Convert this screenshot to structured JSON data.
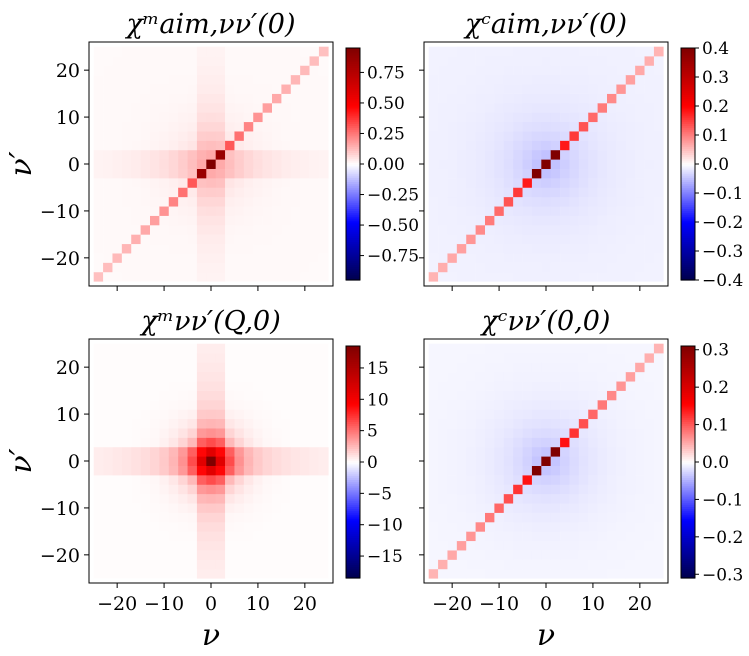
{
  "chart_data": [
    {
      "type": "heatmap",
      "title": "χᵐaim,νν′(0)",
      "xlabel": "",
      "ylabel": "ν′",
      "xlim": [
        -26,
        26
      ],
      "ylim": [
        -26,
        26
      ],
      "xticks": [
        -20,
        -10,
        0,
        10,
        20
      ],
      "yticks": [
        -20,
        -10,
        0,
        10,
        20
      ],
      "xtick_labels": [
        "",
        "",
        "",
        "",
        ""
      ],
      "ytick_labels": [
        "−20",
        "−10",
        "0",
        "10",
        "20"
      ],
      "colorbar": {
        "vmin": -0.95,
        "vmax": 0.95,
        "ticks": [
          -0.75,
          -0.5,
          -0.25,
          0.0,
          0.25,
          0.5,
          0.75
        ],
        "tick_labels": [
          "−0.75",
          "−0.50",
          "−0.25",
          "0.00",
          "0.25",
          "0.50",
          "0.75"
        ]
      },
      "pattern": "diagonal + cross",
      "values": {
        "peak": 0.95,
        "diag_center": 0.45,
        "diag_far": 0.1,
        "cross_center": 0.08,
        "background": 0.01
      }
    },
    {
      "type": "heatmap",
      "title": "χᶜaim,νν′(0)",
      "xlabel": "",
      "ylabel": "",
      "xlim": [
        -26,
        26
      ],
      "ylim": [
        -26,
        26
      ],
      "xticks": [
        -20,
        -10,
        0,
        10,
        20
      ],
      "yticks": [
        -20,
        -10,
        0,
        10,
        20
      ],
      "xtick_labels": [
        "",
        "",
        "",
        "",
        ""
      ],
      "ytick_labels": [
        "",
        "",
        "",
        "",
        ""
      ],
      "colorbar": {
        "vmin": -0.4,
        "vmax": 0.4,
        "ticks": [
          -0.4,
          -0.3,
          -0.2,
          -0.1,
          0.0,
          0.1,
          0.2,
          0.3,
          0.4
        ],
        "tick_labels": [
          "−0.4",
          "−0.3",
          "−0.2",
          "−0.1",
          "0.0",
          "0.1",
          "0.2",
          "0.3",
          "0.4"
        ]
      },
      "pattern": "diagonal + blue halo",
      "values": {
        "peak": 0.4,
        "diag_center": 0.25,
        "diag_far": 0.04,
        "halo": -0.05,
        "background": -0.01
      }
    },
    {
      "type": "heatmap",
      "title": "χᵐνν′(Q,0)",
      "xlabel": "ν",
      "ylabel": "ν′",
      "xlim": [
        -26,
        26
      ],
      "ylim": [
        -26,
        26
      ],
      "xticks": [
        -20,
        -10,
        0,
        10,
        20
      ],
      "yticks": [
        -20,
        -10,
        0,
        10,
        20
      ],
      "xtick_labels": [
        "−20",
        "−10",
        "0",
        "10",
        "20"
      ],
      "ytick_labels": [
        "−20",
        "−10",
        "0",
        "10",
        "20"
      ],
      "colorbar": {
        "vmin": -18.5,
        "vmax": 18.5,
        "ticks": [
          -15,
          -10,
          -5,
          0,
          5,
          10,
          15
        ],
        "tick_labels": [
          "−15",
          "−10",
          "−5",
          "0",
          "5",
          "10",
          "15"
        ]
      },
      "pattern": "cross + central blob",
      "values": {
        "peak": 18.5,
        "cross_center": 2.5,
        "background": 0.1
      }
    },
    {
      "type": "heatmap",
      "title": "χᶜνν′(0,0)",
      "xlabel": "ν",
      "ylabel": "",
      "xlim": [
        -26,
        26
      ],
      "ylim": [
        -26,
        26
      ],
      "xticks": [
        -20,
        -10,
        0,
        10,
        20
      ],
      "yticks": [
        -20,
        -10,
        0,
        10,
        20
      ],
      "xtick_labels": [
        "−20",
        "−10",
        "0",
        "10",
        "20"
      ],
      "ytick_labels": [
        "",
        "",
        "",
        "",
        ""
      ],
      "colorbar": {
        "vmin": -0.31,
        "vmax": 0.31,
        "ticks": [
          -0.3,
          -0.2,
          -0.1,
          0.0,
          0.1,
          0.2,
          0.3
        ],
        "tick_labels": [
          "−0.3",
          "−0.2",
          "−0.1",
          "0.0",
          "0.1",
          "0.2",
          "0.3"
        ]
      },
      "pattern": "diagonal + blue halo",
      "values": {
        "peak": 0.31,
        "diag_center": 0.2,
        "diag_far": 0.03,
        "halo": -0.04,
        "background": -0.005
      }
    }
  ]
}
